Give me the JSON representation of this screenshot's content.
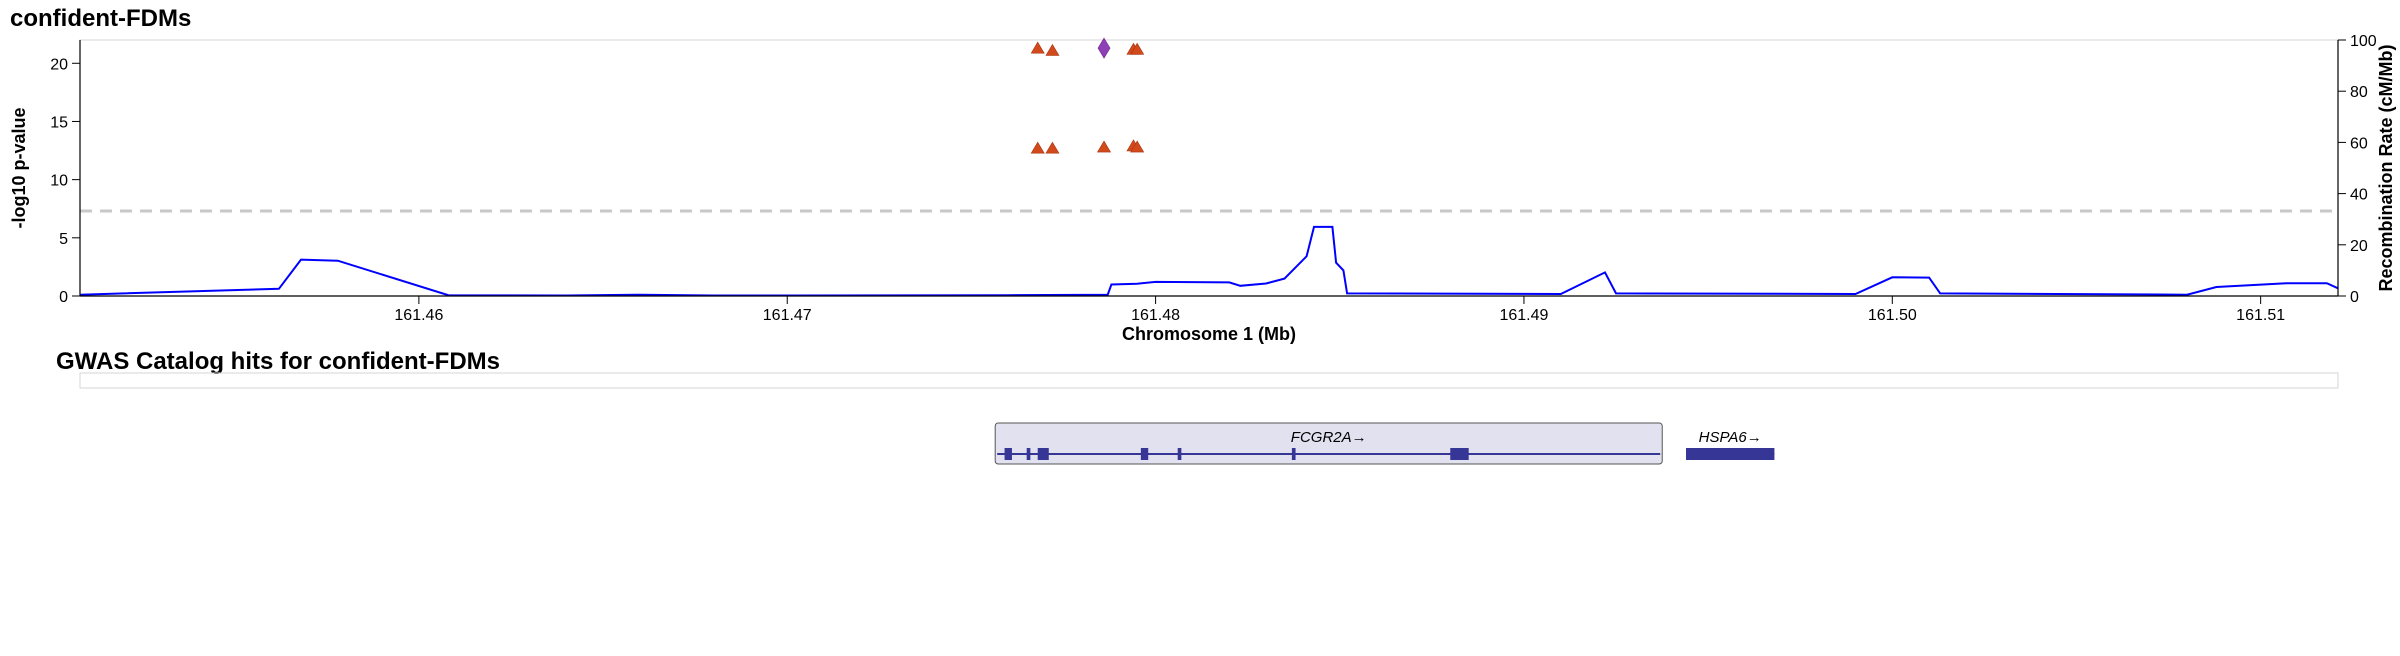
{
  "chart_data": {
    "type": "scatter",
    "title": "confident-FDMs",
    "xlabel": "Chromosome 1 (Mb)",
    "ylabel": "-log10 p-value",
    "y2label": "Recombination Rate (cM/Mb)",
    "xlim": [
      161.4508,
      161.5121
    ],
    "ylim": [
      0,
      22
    ],
    "y2lim": [
      0,
      100
    ],
    "xticks": [
      {
        "value": 161.46,
        "label": "161.46"
      },
      {
        "value": 161.47,
        "label": "161.47"
      },
      {
        "value": 161.48,
        "label": "161.48"
      },
      {
        "value": 161.49,
        "label": "161.49"
      },
      {
        "value": 161.5,
        "label": "161.50"
      },
      {
        "value": 161.51,
        "label": "161.51"
      }
    ],
    "yticks": [
      {
        "value": 0,
        "label": "0"
      },
      {
        "value": 5,
        "label": "5"
      },
      {
        "value": 10,
        "label": "10"
      },
      {
        "value": 15,
        "label": "15"
      },
      {
        "value": 20,
        "label": "20"
      }
    ],
    "y2ticks": [
      {
        "value": 0,
        "label": "0"
      },
      {
        "value": 20,
        "label": "20"
      },
      {
        "value": 40,
        "label": "40"
      },
      {
        "value": 60,
        "label": "60"
      },
      {
        "value": 80,
        "label": "80"
      },
      {
        "value": 100,
        "label": "100"
      }
    ],
    "significance_line": 7.3,
    "grid": false,
    "colors": {
      "variant_triangle": "#d2491c",
      "lead_variant": "#8e3fb6",
      "recombination": "#0000ff",
      "significance": "#c8c8c8",
      "gene": "#363696",
      "gene_highlight_fill": "#e1e1f0"
    },
    "series": [
      {
        "marker": "triangle",
        "points": [
          {
            "x": 161.4768,
            "y": 21.3
          },
          {
            "x": 161.4772,
            "y": 21.1
          },
          {
            "x": 161.4794,
            "y": 21.2
          },
          {
            "x": 161.4795,
            "y": 21.2
          },
          {
            "x": 161.4768,
            "y": 12.7
          },
          {
            "x": 161.4772,
            "y": 12.7
          },
          {
            "x": 161.4786,
            "y": 12.8
          },
          {
            "x": 161.4794,
            "y": 12.9
          },
          {
            "x": 161.4795,
            "y": 12.8
          }
        ]
      },
      {
        "marker": "diamond",
        "points": [
          {
            "x": 161.4786,
            "y": 21.3
          }
        ]
      }
    ],
    "recombination": [
      [
        161.4508,
        0.5
      ],
      [
        161.4562,
        2.8
      ],
      [
        161.4568,
        14.2
      ],
      [
        161.4578,
        13.8
      ],
      [
        161.4608,
        0.3
      ],
      [
        161.464,
        0.2
      ],
      [
        161.466,
        0.5
      ],
      [
        161.468,
        0.2
      ],
      [
        161.47,
        0.2
      ],
      [
        161.476,
        0.3
      ],
      [
        161.4787,
        0.5
      ],
      [
        161.4788,
        4.5
      ],
      [
        161.4795,
        4.8
      ],
      [
        161.48,
        5.5
      ],
      [
        161.482,
        5.3
      ],
      [
        161.4823,
        4.0
      ],
      [
        161.483,
        4.9
      ],
      [
        161.4835,
        6.8
      ],
      [
        161.4841,
        15.5
      ],
      [
        161.4843,
        27.0
      ],
      [
        161.4848,
        27.0
      ],
      [
        161.4849,
        13.0
      ],
      [
        161.4851,
        10.0
      ],
      [
        161.4852,
        1.0
      ],
      [
        161.491,
        0.8
      ],
      [
        161.4922,
        9.2
      ],
      [
        161.4925,
        1.0
      ],
      [
        161.499,
        0.8
      ],
      [
        161.5,
        7.3
      ],
      [
        161.501,
        7.2
      ],
      [
        161.5013,
        1.0
      ],
      [
        161.508,
        0.5
      ],
      [
        161.5088,
        3.5
      ],
      [
        161.5107,
        5.0
      ],
      [
        161.5118,
        5.0
      ],
      [
        161.5121,
        3.0
      ]
    ],
    "gwas_track": {
      "title": "GWAS Catalog hits for confident-FDMs",
      "hits": []
    },
    "genes": [
      {
        "name": "FCGR2A→",
        "start": 161.4757,
        "end": 161.4937,
        "highlighted": true,
        "exons": [
          [
            161.4759,
            161.4761
          ],
          [
            161.4765,
            161.4766
          ],
          [
            161.4768,
            161.4771
          ],
          [
            161.4796,
            161.4798
          ],
          [
            161.4806,
            161.4807
          ],
          [
            161.4837,
            161.4838
          ],
          [
            161.488,
            161.4885
          ]
        ]
      },
      {
        "name": "HSPA6→",
        "start": 161.4944,
        "end": 161.4968,
        "highlighted": false,
        "exons": [
          [
            161.4944,
            161.4968
          ]
        ]
      }
    ]
  }
}
